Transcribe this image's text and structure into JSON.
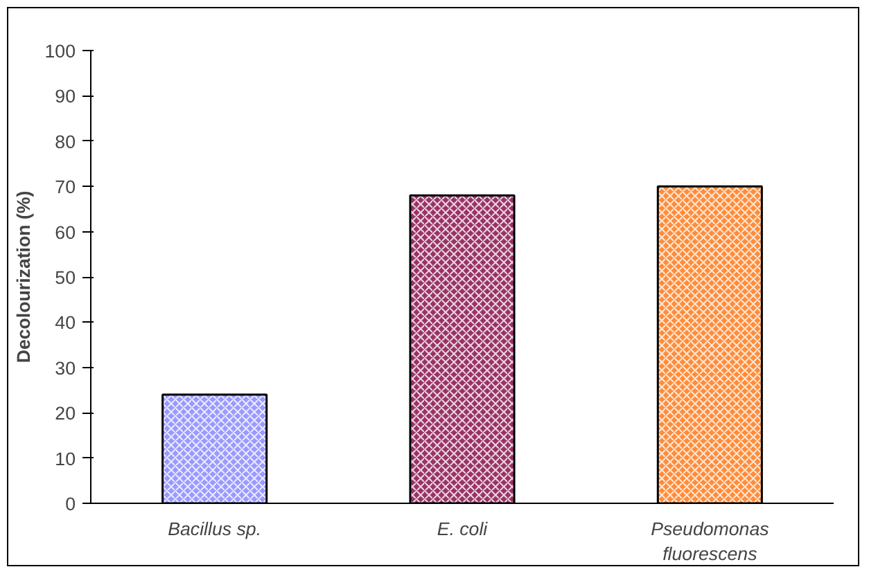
{
  "chart_data": {
    "type": "bar",
    "ylabel": "Decolourization (%)",
    "categories": [
      "Bacillus sp.",
      "E. coli",
      "Pseudomonas fluorescens"
    ],
    "values": [
      24,
      68,
      70
    ],
    "colors": [
      "#9999ff",
      "#993366",
      "#ff8c3a"
    ],
    "ylim": [
      0,
      100
    ],
    "yticks": [
      0,
      10,
      20,
      30,
      40,
      50,
      60,
      70,
      80,
      90,
      100
    ],
    "grid": false
  }
}
